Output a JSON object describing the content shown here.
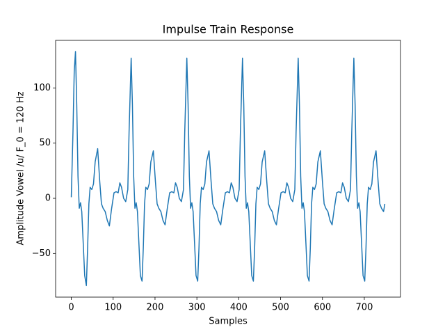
{
  "chart_data": {
    "type": "line",
    "title": "Impulse Train Response",
    "xlabel": "Samples",
    "ylabel": "Amplitude Vowel /u/ F_0 = 120 Hz",
    "x": [
      0,
      4,
      7,
      10,
      13,
      16,
      19,
      22,
      25,
      29,
      32,
      36,
      39,
      42,
      45,
      49,
      53,
      57,
      63,
      68,
      72,
      76,
      81,
      86,
      91,
      96,
      102,
      107,
      112,
      116,
      120,
      125,
      130,
      135,
      138,
      143,
      146,
      149,
      152,
      155,
      158,
      162,
      165,
      169,
      172,
      175,
      178,
      182,
      186,
      190,
      196,
      201,
      205,
      209,
      214,
      219,
      224,
      229,
      235,
      240,
      245,
      249,
      253,
      258,
      263,
      268,
      271,
      276,
      279,
      282,
      285,
      288,
      291,
      295,
      298,
      302,
      305,
      308,
      311,
      315,
      319,
      323,
      329,
      334,
      338,
      342,
      347,
      352,
      357,
      362,
      368,
      373,
      378,
      382,
      386,
      391,
      396,
      401,
      404,
      409,
      412,
      415,
      418,
      421,
      424,
      428,
      431,
      435,
      438,
      441,
      444,
      448,
      452,
      456,
      462,
      467,
      471,
      475,
      480,
      485,
      490,
      495,
      501,
      506,
      511,
      515,
      519,
      524,
      529,
      534,
      537,
      542,
      545,
      548,
      551,
      554,
      557,
      561,
      564,
      568,
      571,
      574,
      577,
      581,
      585,
      589,
      595,
      600,
      604,
      608,
      613,
      618,
      623,
      628,
      634,
      639,
      644,
      648,
      652,
      657,
      662,
      667,
      670,
      675,
      678,
      681,
      684,
      687,
      690,
      694,
      697,
      701,
      704,
      707,
      710,
      714,
      718,
      722,
      728,
      733,
      737,
      741,
      746,
      749
    ],
    "series": [
      {
        "color": "#1f77b4",
        "values": [
          1,
          60,
          115,
          133,
          85,
          20,
          -9,
          -4,
          -12,
          -45,
          -70,
          -79,
          -45,
          -5,
          10,
          8,
          13,
          33,
          45,
          15,
          -5,
          -9,
          -12,
          -20,
          -25,
          -10,
          5,
          6,
          5,
          14,
          10,
          0,
          -3,
          8,
          60,
          127,
          85,
          20,
          -9,
          -4,
          -12,
          -45,
          -70,
          -75,
          -45,
          -5,
          10,
          8,
          13,
          33,
          43,
          15,
          -5,
          -9,
          -12,
          -20,
          -24,
          -10,
          5,
          6,
          5,
          14,
          10,
          0,
          -3,
          8,
          60,
          127,
          85,
          20,
          -9,
          -4,
          -12,
          -45,
          -70,
          -75,
          -45,
          -5,
          10,
          8,
          13,
          33,
          43,
          15,
          -5,
          -9,
          -12,
          -20,
          -24,
          -10,
          5,
          6,
          5,
          14,
          10,
          0,
          -3,
          8,
          60,
          127,
          85,
          20,
          -9,
          -4,
          -12,
          -45,
          -70,
          -75,
          -45,
          -5,
          10,
          8,
          13,
          33,
          43,
          15,
          -5,
          -9,
          -12,
          -20,
          -24,
          -10,
          5,
          6,
          5,
          14,
          10,
          0,
          -3,
          8,
          60,
          127,
          85,
          20,
          -9,
          -4,
          -12,
          -45,
          -70,
          -75,
          -45,
          -5,
          10,
          8,
          13,
          33,
          43,
          15,
          -5,
          -9,
          -12,
          -20,
          -24,
          -10,
          5,
          6,
          5,
          14,
          10,
          0,
          -3,
          8,
          60,
          127,
          85,
          20,
          -9,
          -4,
          -12,
          -45,
          -70,
          -75,
          -45,
          -5,
          10,
          8,
          13,
          33,
          43,
          15,
          -5,
          -9,
          -12,
          -5
        ]
      }
    ],
    "xlim": [
      -37.45,
      786.45
    ],
    "ylim": [
      -89.5,
      143.1
    ],
    "xticks": [
      0,
      100,
      200,
      300,
      400,
      500,
      600,
      700
    ],
    "yticks": [
      {
        "value": -50,
        "label": "−50"
      },
      0,
      50,
      100
    ]
  }
}
